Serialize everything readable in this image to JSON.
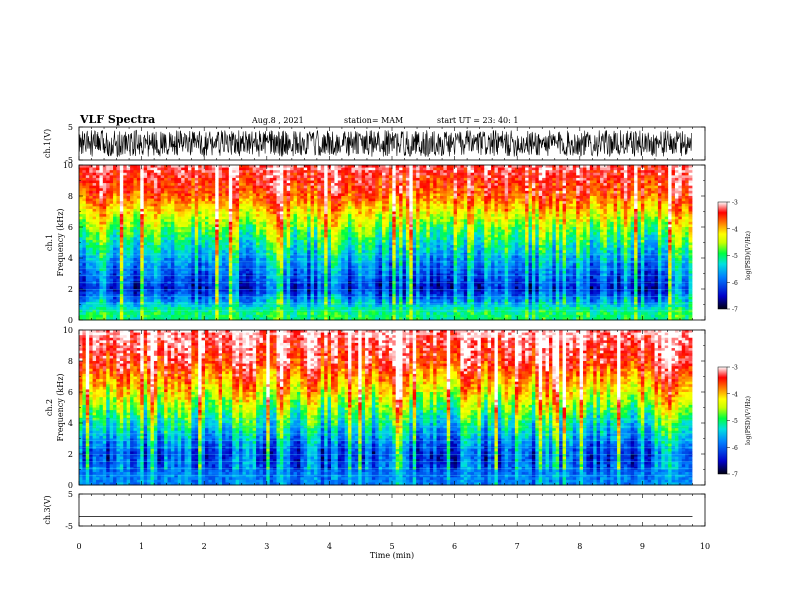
{
  "header": {
    "title": "VLF Spectra",
    "date": "Aug.8 , 2021",
    "station": "station= MAM",
    "start_ut": "start UT = 23: 40: 1"
  },
  "chart_data": [
    {
      "type": "line",
      "panel": "waveform-ch1",
      "ylabel": "ch.1(V)",
      "ylim": [
        -5,
        5
      ],
      "y_ticks": [
        "5",
        "-5"
      ],
      "description_values": "dense noise-like waveform filling roughly -4 to 4 V",
      "x_range_min": [
        0,
        9.8
      ]
    },
    {
      "type": "heatmap",
      "panel": "spectrogram-ch1",
      "ylabel": "ch.1\nFrequency (kHz)",
      "ylim": [
        0,
        10
      ],
      "y_ticks": [
        "0",
        "2",
        "4",
        "6",
        "8",
        "10"
      ],
      "x_range_min": [
        0,
        9.8
      ],
      "colorbar": {
        "label": "log(PSD)(V²/Hz)",
        "range": [
          -7,
          -3
        ],
        "ticks": [
          "-3",
          "-4",
          "-5",
          "-6",
          "-7"
        ]
      },
      "approx_profile": [
        {
          "freq_khz": 10,
          "log_psd": -3.2
        },
        {
          "freq_khz": 8,
          "log_psd": -3.6
        },
        {
          "freq_khz": 6,
          "log_psd": -4.6
        },
        {
          "freq_khz": 4,
          "log_psd": -5.5
        },
        {
          "freq_khz": 2,
          "log_psd": -6.2
        },
        {
          "freq_khz": 0.5,
          "log_psd": -5.0
        }
      ]
    },
    {
      "type": "heatmap",
      "panel": "spectrogram-ch2",
      "ylabel": "ch.2\nFrequency (kHz)",
      "ylim": [
        0,
        10
      ],
      "y_ticks": [
        "0",
        "2",
        "4",
        "6",
        "8",
        "10"
      ],
      "x_range_min": [
        0,
        9.8
      ],
      "colorbar": {
        "label": "log(PSD)(V²/Hz)",
        "range": [
          -7,
          -3
        ],
        "ticks": [
          "-3",
          "-4",
          "-5",
          "-6",
          "-7"
        ]
      },
      "approx_profile": [
        {
          "freq_khz": 10,
          "log_psd": -3.1
        },
        {
          "freq_khz": 8,
          "log_psd": -3.4
        },
        {
          "freq_khz": 6,
          "log_psd": -4.2
        },
        {
          "freq_khz": 4,
          "log_psd": -5.2
        },
        {
          "freq_khz": 2,
          "log_psd": -6.1
        },
        {
          "freq_khz": 0.5,
          "log_psd": -5.8
        }
      ]
    },
    {
      "type": "line",
      "panel": "waveform-ch3",
      "ylabel": "ch.3(V)",
      "ylim": [
        -5,
        5
      ],
      "y_ticks": [
        "5",
        "-5"
      ],
      "values": [
        {
          "x": 0,
          "y": -2
        },
        {
          "x": 9.8,
          "y": -2
        }
      ],
      "x_range_min": [
        0,
        9.8
      ]
    }
  ],
  "x_axis": {
    "label": "Time (min)",
    "ticks": [
      "0",
      "1",
      "2",
      "3",
      "4",
      "5",
      "6",
      "7",
      "8",
      "9",
      "10"
    ],
    "range": [
      0,
      10
    ]
  },
  "colors": {
    "colormap": [
      "#00002a",
      "#0000c8",
      "#0080ff",
      "#00e0e0",
      "#00ff40",
      "#c8ff00",
      "#ffff00",
      "#ff8000",
      "#ff0000",
      "#ffffff"
    ]
  }
}
